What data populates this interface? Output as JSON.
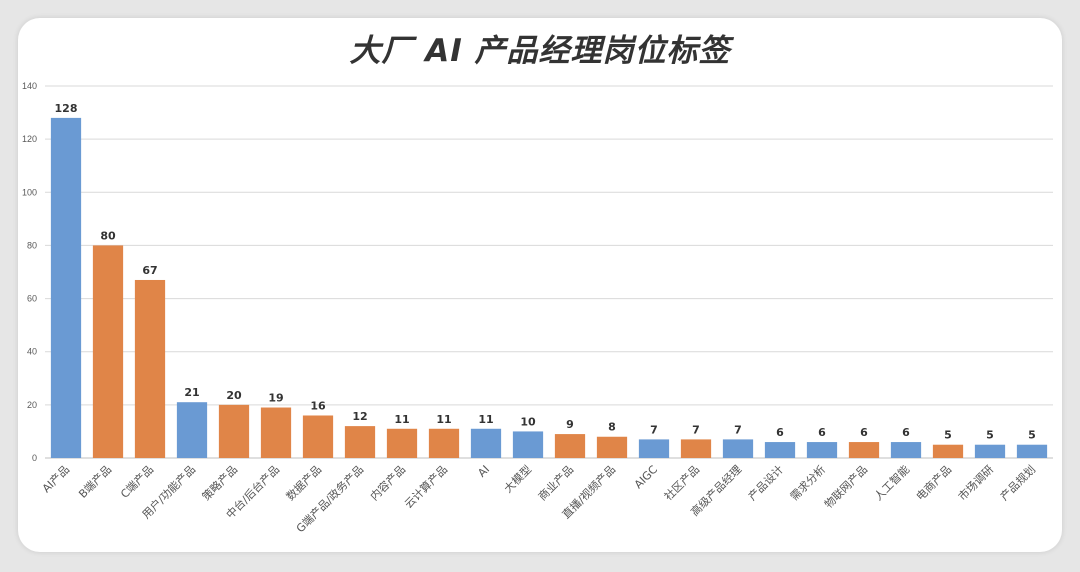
{
  "title": "大厂 AI 产品经理岗位标签",
  "colors": {
    "blue": "#6a9ad3",
    "orange": "#e08548",
    "grid": "#d9d9d9"
  },
  "chart_data": {
    "type": "bar",
    "title": "大厂 AI 产品经理岗位标签",
    "xlabel": "",
    "ylabel": "",
    "ylim": [
      0,
      140
    ],
    "yticks": [
      0,
      20,
      40,
      60,
      80,
      100,
      120,
      140
    ],
    "grid": true,
    "categories": [
      "AI产品",
      "B端产品",
      "C端产品",
      "用户/功能产品",
      "策略产品",
      "中台/后台产品",
      "数据产品",
      "G端产品/政务产品",
      "内容产品",
      "云计算产品",
      "AI",
      "大模型",
      "商业产品",
      "直播/视频产品",
      "AIGC",
      "社区产品",
      "高级产品经理",
      "产品设计",
      "需求分析",
      "物联网产品",
      "人工智能",
      "电商产品",
      "市场调研",
      "产品规划"
    ],
    "values": [
      128,
      80,
      67,
      21,
      20,
      19,
      16,
      12,
      11,
      11,
      11,
      10,
      9,
      8,
      7,
      7,
      7,
      6,
      6,
      6,
      6,
      5,
      5,
      5
    ],
    "bar_colors": [
      "blue",
      "orange",
      "orange",
      "blue",
      "orange",
      "orange",
      "orange",
      "orange",
      "orange",
      "orange",
      "blue",
      "blue",
      "orange",
      "orange",
      "blue",
      "orange",
      "blue",
      "blue",
      "blue",
      "orange",
      "blue",
      "orange",
      "blue",
      "blue"
    ]
  }
}
